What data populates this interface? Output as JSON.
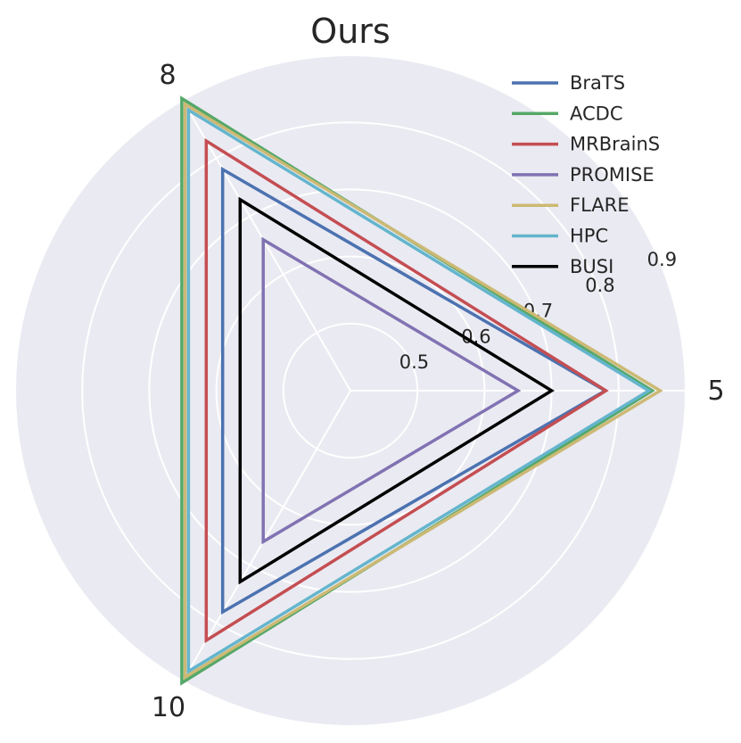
{
  "chart_data": {
    "type": "radar",
    "title": "Ours",
    "categories": [
      "5",
      "8",
      "10"
    ],
    "radial_ticks": [
      "0.5",
      "0.6",
      "0.7",
      "0.8",
      "0.9"
    ],
    "rlim": [
      0.4,
      0.9
    ],
    "grid": true,
    "legend_position": "top-right",
    "series": [
      {
        "name": "BraTS",
        "color": "#4c72b0",
        "values": [
          0.78,
          0.781,
          0.781
        ]
      },
      {
        "name": "ACDC",
        "color": "#55a868",
        "values": [
          0.85,
          0.903,
          0.903
        ]
      },
      {
        "name": "MRBrainS",
        "color": "#c44e52",
        "values": [
          0.781,
          0.83,
          0.83
        ]
      },
      {
        "name": "PROMISE",
        "color": "#8172b2",
        "values": [
          0.65,
          0.66,
          0.66
        ]
      },
      {
        "name": "FLARE",
        "color": "#ccb974",
        "values": [
          0.862,
          0.893,
          0.893
        ]
      },
      {
        "name": "HPC",
        "color": "#64b5cd",
        "values": [
          0.845,
          0.883,
          0.883
        ]
      },
      {
        "name": "BUSI",
        "color": "#000000",
        "values": [
          0.7,
          0.729,
          0.729
        ]
      }
    ]
  }
}
